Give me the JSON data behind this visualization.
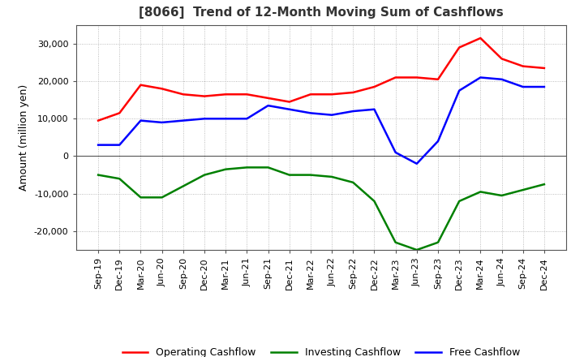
{
  "title": "[8066]  Trend of 12-Month Moving Sum of Cashflows",
  "ylabel": "Amount (million yen)",
  "ylim": [
    -25000,
    35000
  ],
  "yticks": [
    -20000,
    -10000,
    0,
    10000,
    20000,
    30000
  ],
  "x_labels": [
    "Sep-19",
    "Dec-19",
    "Mar-20",
    "Jun-20",
    "Sep-20",
    "Dec-20",
    "Mar-21",
    "Jun-21",
    "Sep-21",
    "Dec-21",
    "Mar-22",
    "Jun-22",
    "Sep-22",
    "Dec-22",
    "Mar-23",
    "Jun-23",
    "Sep-23",
    "Dec-23",
    "Mar-24",
    "Jun-24",
    "Sep-24",
    "Dec-24"
  ],
  "operating": [
    9500,
    11500,
    19000,
    18000,
    16500,
    16000,
    16500,
    16500,
    15500,
    14500,
    16500,
    16500,
    17000,
    18500,
    21000,
    21000,
    20500,
    29000,
    31500,
    26000,
    24000,
    23500
  ],
  "investing": [
    -5000,
    -6000,
    -11000,
    -11000,
    -8000,
    -5000,
    -3500,
    -3000,
    -3000,
    -5000,
    -5000,
    -5500,
    -7000,
    -12000,
    -23000,
    -25000,
    -23000,
    -12000,
    -9500,
    -10500,
    -9000,
    -7500
  ],
  "free": [
    3000,
    3000,
    9500,
    9000,
    9500,
    10000,
    10000,
    10000,
    13500,
    12500,
    11500,
    11000,
    12000,
    12500,
    1000,
    -2000,
    4000,
    17500,
    21000,
    20500,
    18500,
    18500
  ],
  "operating_color": "#ff0000",
  "investing_color": "#008000",
  "free_color": "#0000ff",
  "background_color": "#ffffff",
  "grid_color": "#aaaaaa",
  "zero_line_color": "#555555",
  "legend_labels": [
    "Operating Cashflow",
    "Investing Cashflow",
    "Free Cashflow"
  ],
  "title_fontsize": 11,
  "axis_fontsize": 8,
  "ylabel_fontsize": 9,
  "linewidth": 1.8
}
